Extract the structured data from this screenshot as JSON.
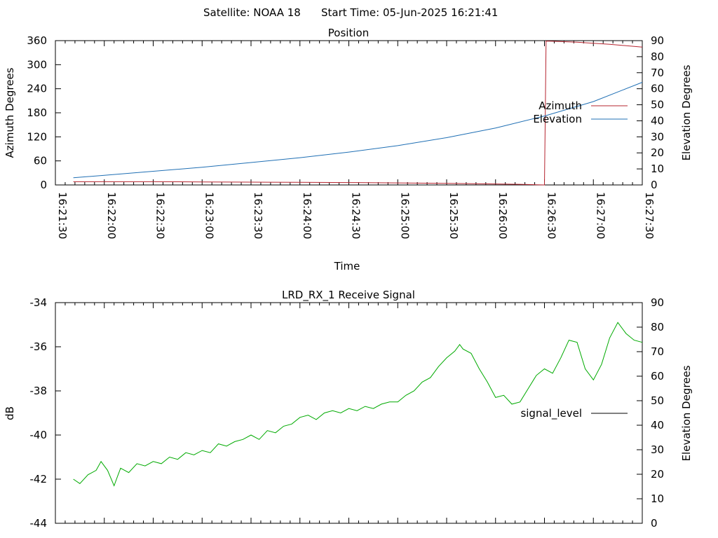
{
  "header": {
    "satellite": "Satellite: NOAA 18",
    "start_time": "Start Time: 05-Jun-2025 16:21:41"
  },
  "chart_data": [
    {
      "type": "line",
      "title": "Position",
      "xlabel": "Time",
      "ylabel": "Azimuth Degrees",
      "y2label": "Elevation Degrees",
      "x_tick_labels": [
        "16:21:30",
        "16:22:00",
        "16:22:30",
        "16:23:00",
        "16:23:30",
        "16:24:00",
        "16:24:30",
        "16:25:00",
        "16:25:30",
        "16:26:00",
        "16:26:30",
        "16:27:00",
        "16:27:30"
      ],
      "xlim_seconds": [
        0,
        360
      ],
      "ylim": [
        0,
        360
      ],
      "y_ticks": [
        0,
        60,
        120,
        180,
        240,
        300,
        360
      ],
      "y2lim": [
        0,
        90
      ],
      "y2_ticks": [
        0,
        10,
        20,
        30,
        40,
        50,
        60,
        70,
        80,
        90
      ],
      "legend_position": "right",
      "series": [
        {
          "name": "Azimuth",
          "axis": "y",
          "color": "#b5242f",
          "x": [
            11,
            30,
            60,
            90,
            120,
            150,
            180,
            210,
            240,
            270,
            285,
            295,
            300,
            300.5,
            301,
            305,
            320,
            340,
            360
          ],
          "y": [
            8,
            8,
            8,
            7.5,
            7,
            6.5,
            6,
            5,
            4,
            2.5,
            1.5,
            0.5,
            0,
            180,
            359,
            358.5,
            356,
            351,
            344
          ]
        },
        {
          "name": "Elevation",
          "axis": "y2",
          "color": "#1f6fb4",
          "x": [
            11,
            30,
            60,
            90,
            120,
            150,
            180,
            210,
            240,
            270,
            300,
            330,
            360
          ],
          "y": [
            4.5,
            6,
            8.5,
            11,
            14,
            17,
            20.5,
            24.5,
            29.5,
            35.5,
            43,
            52,
            64
          ]
        }
      ]
    },
    {
      "type": "line",
      "title": "LRD_RX_1 Receive Signal",
      "ylabel": "dB",
      "y2label": "Elevation Degrees",
      "xlim_seconds": [
        0,
        360
      ],
      "ylim": [
        -44,
        -34
      ],
      "y_ticks": [
        -44,
        -42,
        -40,
        -38,
        -36,
        -34
      ],
      "y2lim": [
        0,
        90
      ],
      "y2_ticks": [
        0,
        10,
        20,
        30,
        40,
        50,
        60,
        70,
        80,
        90
      ],
      "legend_position": "right",
      "series": [
        {
          "name": "signal_level",
          "color": "#00aa00",
          "x": [
            11,
            15,
            20,
            25,
            28,
            32,
            36,
            38,
            40,
            45,
            50,
            55,
            60,
            65,
            70,
            75,
            80,
            85,
            90,
            95,
            100,
            105,
            110,
            115,
            120,
            125,
            130,
            135,
            140,
            145,
            150,
            155,
            160,
            165,
            170,
            175,
            180,
            185,
            190,
            195,
            200,
            205,
            210,
            215,
            220,
            225,
            230,
            235,
            240,
            245,
            248,
            250,
            255,
            260,
            265,
            270,
            275,
            280,
            285,
            290,
            295,
            300,
            305,
            310,
            315,
            320,
            325,
            330,
            335,
            340,
            345,
            350,
            355,
            360
          ],
          "y": [
            -42.0,
            -42.2,
            -41.8,
            -41.6,
            -41.2,
            -41.6,
            -42.3,
            -41.9,
            -41.5,
            -41.7,
            -41.3,
            -41.4,
            -41.2,
            -41.3,
            -41.0,
            -41.1,
            -40.8,
            -40.9,
            -40.7,
            -40.8,
            -40.4,
            -40.5,
            -40.3,
            -40.2,
            -40.0,
            -40.2,
            -39.8,
            -39.9,
            -39.6,
            -39.5,
            -39.2,
            -39.1,
            -39.3,
            -39.0,
            -38.9,
            -39.0,
            -38.8,
            -38.9,
            -38.7,
            -38.8,
            -38.6,
            -38.5,
            -38.5,
            -38.2,
            -38.0,
            -37.6,
            -37.4,
            -36.9,
            -36.5,
            -36.2,
            -35.9,
            -36.1,
            -36.3,
            -37.0,
            -37.6,
            -38.3,
            -38.2,
            -38.6,
            -38.5,
            -37.9,
            -37.3,
            -37.0,
            -37.2,
            -36.5,
            -35.7,
            -35.8,
            -37.0,
            -37.5,
            -36.8,
            -35.6,
            -34.9,
            -35.4,
            -35.7,
            -35.8
          ]
        }
      ]
    }
  ]
}
